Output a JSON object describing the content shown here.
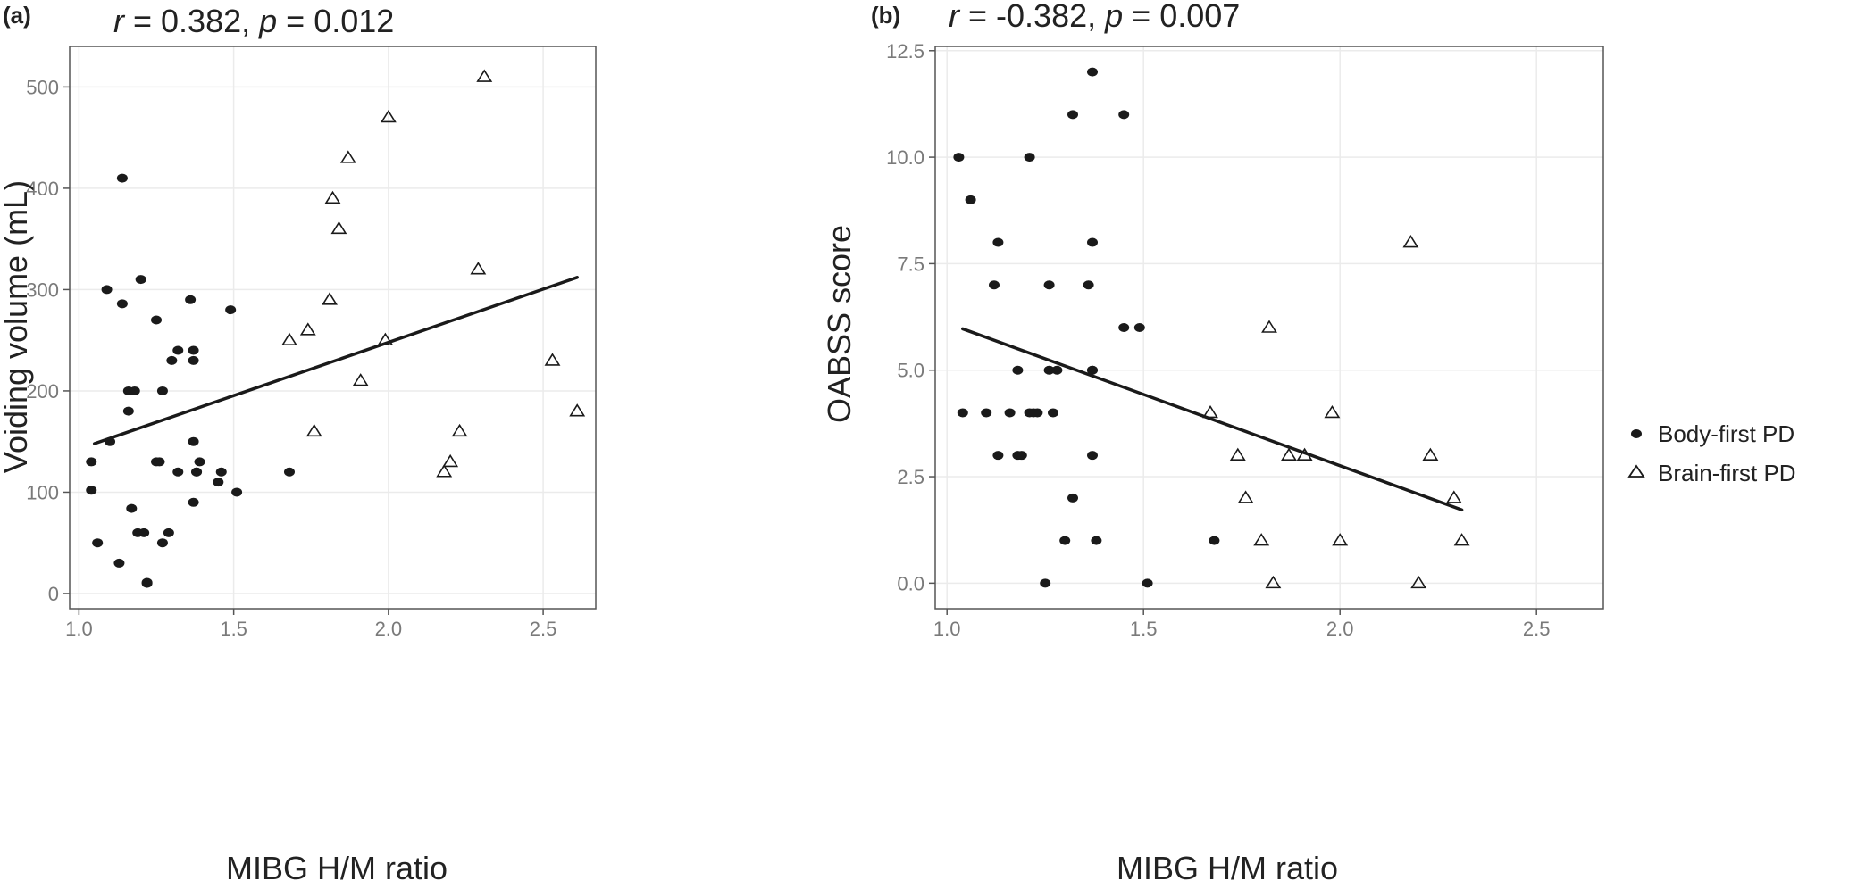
{
  "legend": {
    "entries": [
      {
        "label": "Body-first PD",
        "marker": "filled-circle"
      },
      {
        "label": "Brain-first PD",
        "marker": "open-triangle"
      }
    ]
  },
  "colors": {
    "marker": "#1a1a1a",
    "grid": "#ebebeb",
    "frame": "#555555",
    "tick_text": "#7a7a7a"
  },
  "chart_data": [
    {
      "type": "scatter",
      "panel": "(a)",
      "stat_r": "0.382",
      "stat_p": "0.012",
      "xlabel": "MIBG H/M ratio",
      "ylabel": "Voiding volume (mL)",
      "xlim": [
        0.97,
        2.67
      ],
      "ylim": [
        -15,
        540
      ],
      "xticks": [
        1.0,
        1.5,
        2.0,
        2.5
      ],
      "xtick_labels": [
        "1.0",
        "1.5",
        "2.0",
        "2.5"
      ],
      "yticks": [
        0,
        100,
        200,
        300,
        400,
        500
      ],
      "ytick_labels": [
        "0",
        "100",
        "200",
        "300",
        "400",
        "500"
      ],
      "grid": true,
      "trend_line": {
        "x": [
          1.05,
          2.61
        ],
        "y": [
          148,
          312
        ]
      },
      "series": [
        {
          "name": "Body-first PD",
          "marker": "filled-circle",
          "x": [
            1.04,
            1.04,
            1.06,
            1.09,
            1.1,
            1.13,
            1.14,
            1.14,
            1.16,
            1.16,
            1.18,
            1.17,
            1.19,
            1.2,
            1.21,
            1.22,
            1.22,
            1.25,
            1.26,
            1.25,
            1.27,
            1.27,
            1.29,
            1.3,
            1.32,
            1.32,
            1.36,
            1.37,
            1.37,
            1.37,
            1.38,
            1.38,
            1.37,
            1.39,
            1.45,
            1.46,
            1.49,
            1.51,
            1.68
          ],
          "y": [
            130,
            102,
            50,
            300,
            150,
            30,
            410,
            286,
            200,
            180,
            200,
            84,
            60,
            310,
            60,
            10,
            11,
            270,
            130,
            130,
            50,
            200,
            60,
            230,
            240,
            120,
            290,
            240,
            230,
            150,
            120,
            120,
            90,
            130,
            110,
            120,
            280,
            100,
            120
          ]
        },
        {
          "name": "Brain-first PD",
          "marker": "open-triangle",
          "x": [
            1.68,
            1.74,
            1.76,
            1.81,
            1.82,
            1.84,
            1.87,
            1.91,
            1.99,
            2.0,
            2.18,
            2.2,
            2.23,
            2.29,
            2.31,
            2.53,
            2.61
          ],
          "y": [
            250,
            260,
            160,
            290,
            390,
            360,
            430,
            210,
            250,
            470,
            120,
            130,
            160,
            320,
            510,
            230,
            180
          ]
        }
      ]
    },
    {
      "type": "scatter",
      "panel": "(b)",
      "stat_r": "-0.382",
      "stat_p": "0.007",
      "xlabel": "MIBG H/M ratio",
      "ylabel": "OABSS score",
      "xlim": [
        0.97,
        2.67
      ],
      "ylim": [
        -0.6,
        12.6
      ],
      "xticks": [
        1.0,
        1.5,
        2.0,
        2.5
      ],
      "xtick_labels": [
        "1.0",
        "1.5",
        "2.0",
        "2.5"
      ],
      "yticks": [
        0,
        2.5,
        5,
        7.5,
        10,
        12.5
      ],
      "ytick_labels": [
        "0.0",
        "2.5",
        "5.0",
        "7.5",
        "10.0",
        "12.5"
      ],
      "grid": true,
      "trend_line": {
        "x": [
          1.04,
          2.31
        ],
        "y": [
          5.97,
          1.72
        ]
      },
      "series": [
        {
          "name": "Body-first PD",
          "marker": "filled-circle",
          "x": [
            1.03,
            1.06,
            1.04,
            1.1,
            1.12,
            1.13,
            1.13,
            1.16,
            1.18,
            1.19,
            1.18,
            1.21,
            1.21,
            1.22,
            1.23,
            1.25,
            1.26,
            1.26,
            1.27,
            1.28,
            1.3,
            1.32,
            1.32,
            1.36,
            1.37,
            1.37,
            1.37,
            1.37,
            1.37,
            1.38,
            1.45,
            1.45,
            1.49,
            1.51,
            1.68
          ],
          "y": [
            10,
            9,
            4,
            4,
            7,
            8,
            3,
            4,
            3,
            3,
            5,
            10,
            4,
            4,
            4,
            0,
            7,
            5,
            4,
            5,
            1,
            11,
            2,
            7,
            12,
            8,
            5,
            5,
            3,
            1,
            11,
            6,
            6,
            0,
            1
          ]
        },
        {
          "name": "Brain-first PD",
          "marker": "open-triangle",
          "x": [
            1.67,
            1.74,
            1.76,
            1.8,
            1.82,
            1.83,
            1.87,
            1.91,
            1.98,
            2.0,
            2.18,
            2.2,
            2.23,
            2.29,
            2.31
          ],
          "y": [
            4,
            3,
            2,
            1,
            6,
            0,
            3,
            3,
            4,
            1,
            8,
            0,
            3,
            2,
            1
          ]
        }
      ]
    }
  ]
}
